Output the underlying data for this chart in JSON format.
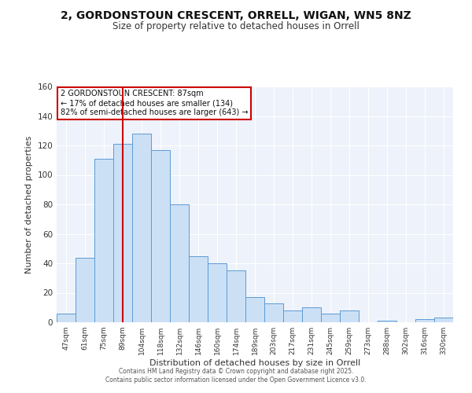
{
  "title": "2, GORDONSTOUN CRESCENT, ORRELL, WIGAN, WN5 8NZ",
  "subtitle": "Size of property relative to detached houses in Orrell",
  "xlabel": "Distribution of detached houses by size in Orrell",
  "ylabel": "Number of detached properties",
  "categories": [
    "47sqm",
    "61sqm",
    "75sqm",
    "89sqm",
    "104sqm",
    "118sqm",
    "132sqm",
    "146sqm",
    "160sqm",
    "174sqm",
    "189sqm",
    "203sqm",
    "217sqm",
    "231sqm",
    "245sqm",
    "259sqm",
    "273sqm",
    "288sqm",
    "302sqm",
    "316sqm",
    "330sqm"
  ],
  "values": [
    6,
    44,
    111,
    121,
    128,
    117,
    80,
    45,
    40,
    35,
    17,
    13,
    8,
    10,
    6,
    8,
    0,
    1,
    0,
    2,
    3
  ],
  "bar_color_face": "#cce0f5",
  "bar_color_edge": "#5b9bd5",
  "background_color": "#eef2fa",
  "grid_color": "#ffffff",
  "vline_x_index": 3,
  "vline_color": "#cc0000",
  "annotation_title": "2 GORDONSTOUN CRESCENT: 87sqm",
  "annotation_line2": "← 17% of detached houses are smaller (134)",
  "annotation_line3": "82% of semi-detached houses are larger (643) →",
  "annotation_box_color": "#ffffff",
  "annotation_box_edge": "#cc0000",
  "ylim": [
    0,
    160
  ],
  "yticks": [
    0,
    20,
    40,
    60,
    80,
    100,
    120,
    140,
    160
  ],
  "footer_line1": "Contains HM Land Registry data © Crown copyright and database right 2025.",
  "footer_line2": "Contains public sector information licensed under the Open Government Licence v3.0.",
  "title_fontsize": 10,
  "subtitle_fontsize": 8.5
}
